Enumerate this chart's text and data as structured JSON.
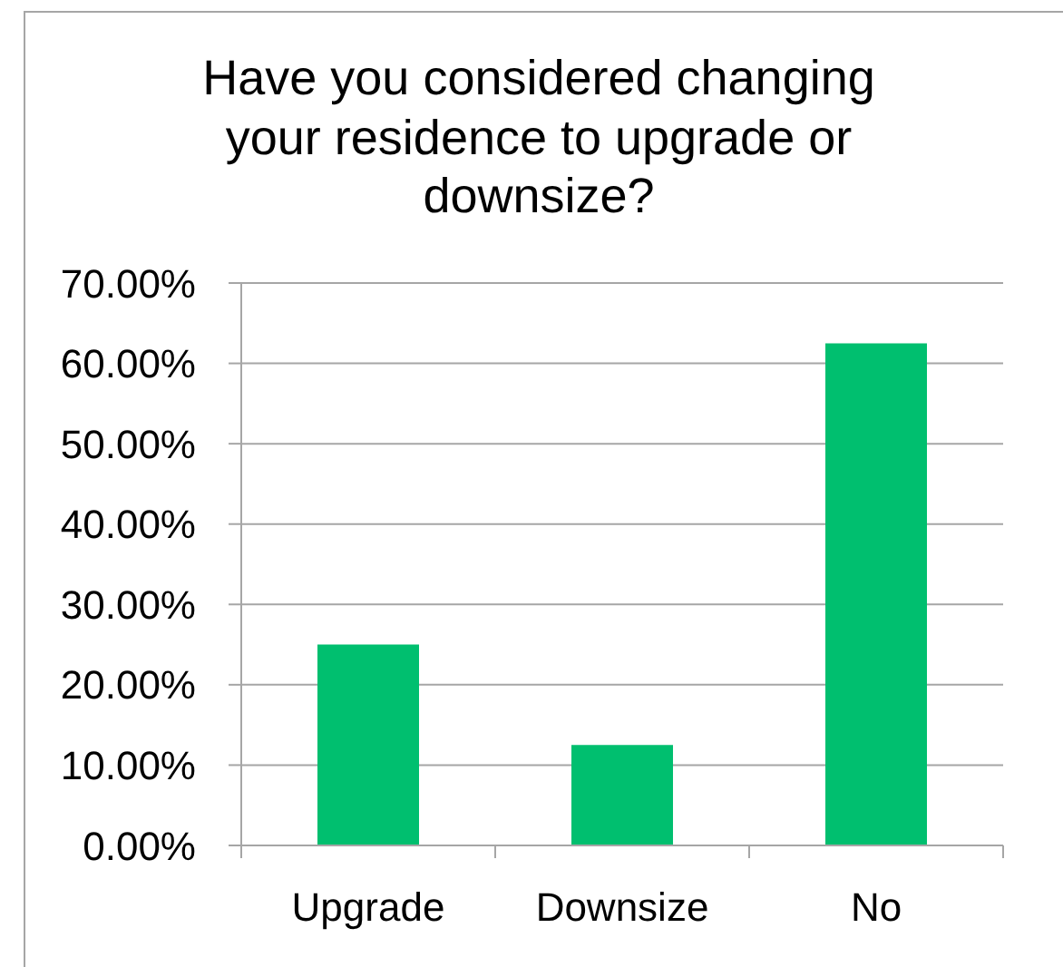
{
  "chart_data": {
    "type": "bar",
    "title": "Have you considered changing your residence to upgrade or downsize?",
    "categories": [
      "Upgrade",
      "Downsize",
      "No"
    ],
    "values": [
      25,
      12.5,
      62.5
    ],
    "color": "#00bf6f",
    "ylim": [
      0,
      70
    ],
    "yticks": [
      {
        "value": 0,
        "label": "0.00%"
      },
      {
        "value": 10,
        "label": "10.00%"
      },
      {
        "value": 20,
        "label": "20.00%"
      },
      {
        "value": 30,
        "label": "30.00%"
      },
      {
        "value": 40,
        "label": "40.00%"
      },
      {
        "value": 50,
        "label": "50.00%"
      },
      {
        "value": 60,
        "label": "60.00%"
      },
      {
        "value": 70,
        "label": "70.00%"
      }
    ],
    "grid": "y"
  }
}
